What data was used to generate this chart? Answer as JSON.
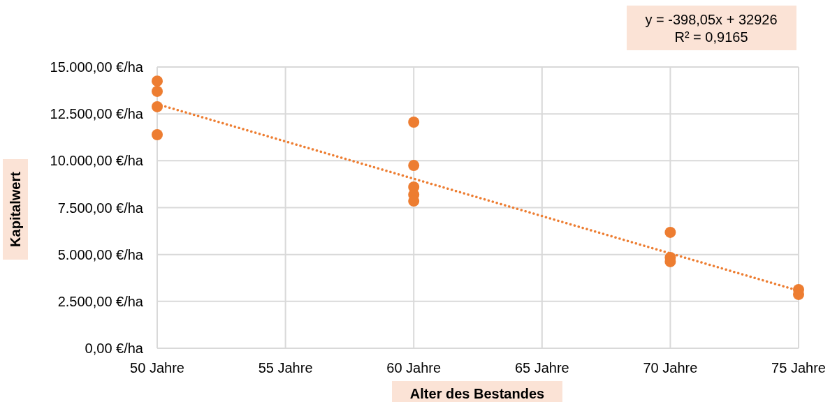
{
  "chart_data": {
    "type": "scatter",
    "xlabel": "Alter des Bestandes",
    "ylabel": "Kapitalwert",
    "annotations": [
      "y = -398,05x + 32926",
      "R² = 0,9165"
    ],
    "series": [
      {
        "color": "#ed7d31",
        "x": [
          50,
          50,
          50,
          50,
          60,
          60,
          60,
          60,
          60,
          70,
          70,
          70,
          75,
          75
        ],
        "values": [
          14250,
          13700,
          12880,
          11390,
          12060,
          9750,
          8600,
          8190,
          7850,
          6180,
          4840,
          4620,
          3130,
          2870
        ],
        "marker": "circle"
      },
      {
        "type": "line",
        "color": "#ed7d31",
        "x": [
          50,
          75
        ],
        "values": [
          13020,
          3070
        ],
        "line_style": "dotted"
      }
    ],
    "xlim": [
      50,
      75
    ],
    "xticks": [
      {
        "value": 50,
        "label": "50 Jahre"
      },
      {
        "value": 55,
        "label": "55 Jahre"
      },
      {
        "value": 60,
        "label": "60 Jahre"
      },
      {
        "value": 65,
        "label": "65 Jahre"
      },
      {
        "value": 70,
        "label": "70 Jahre"
      },
      {
        "value": 75,
        "label": "75 Jahre"
      }
    ],
    "ylim": [
      0,
      15000
    ],
    "yticks": [
      {
        "value": 0,
        "label": "0,00 €/ha"
      },
      {
        "value": 2500,
        "label": "2.500,00 €/ha"
      },
      {
        "value": 5000,
        "label": "5.000,00 €/ha"
      },
      {
        "value": 7500,
        "label": "7.500,00 €/ha"
      },
      {
        "value": 10000,
        "label": "10.000,00 €/ha"
      },
      {
        "value": 12500,
        "label": "12.500,00 €/ha"
      },
      {
        "value": 15000,
        "label": "15.000,00 €/ha"
      }
    ],
    "grid": true
  }
}
